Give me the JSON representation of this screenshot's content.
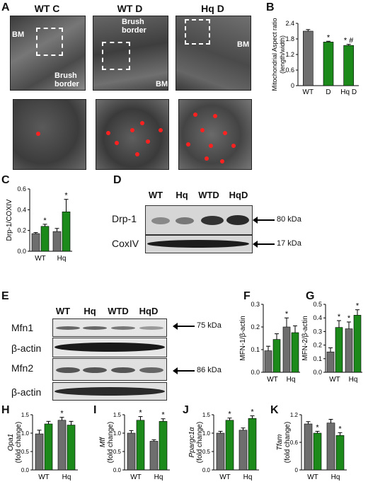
{
  "panels": {
    "A": "A",
    "B": "B",
    "C": "C",
    "D": "D",
    "E": "E",
    "F": "F",
    "G": "G",
    "H": "H",
    "I": "I",
    "J": "J",
    "K": "K"
  },
  "em": {
    "titles": [
      "WT C",
      "WT D",
      "Hq D"
    ],
    "labels": {
      "bm": "BM",
      "brush_border": "Brush border"
    }
  },
  "blot_d": {
    "lanes": [
      "WT",
      "Hq",
      "WTD",
      "HqD"
    ],
    "rows": [
      "Drp-1",
      "CoxIV"
    ],
    "kda": [
      "80 kDa",
      "17 kDa"
    ]
  },
  "blot_e": {
    "lanes": [
      "WT",
      "Hq",
      "WTD",
      "HqD"
    ],
    "rows": [
      "Mfn1",
      "β-actin",
      "Mfn2",
      "β-actin"
    ],
    "kda": [
      "75 kDa",
      "86 kDa"
    ]
  },
  "colors": {
    "control": "#6e6e6e",
    "treated": "#1b8a1b",
    "error": "#000000"
  },
  "chart_data": [
    {
      "id": "B",
      "type": "bar",
      "categories": [
        "WT",
        "D",
        "Hq D"
      ],
      "values": [
        2.1,
        1.68,
        1.55
      ],
      "errors": [
        0.06,
        0.03,
        0.04
      ],
      "colors": [
        "#6e6e6e",
        "#1b8a1b",
        "#1b8a1b"
      ],
      "ylabel": "Mitochondrial Aspect ratio (length/width)",
      "ylim": [
        0,
        2.4
      ],
      "yticks": [
        0,
        0.6,
        1.2,
        1.8,
        2.4
      ],
      "sig": [
        "",
        "*",
        "* #"
      ]
    },
    {
      "id": "C",
      "type": "bar",
      "categories": [
        "WT",
        "Hq"
      ],
      "series": [
        {
          "values": [
            0.17,
            0.19
          ],
          "errors": [
            0.01,
            0.03
          ]
        },
        {
          "values": [
            0.24,
            0.38
          ],
          "errors": [
            0.02,
            0.12
          ]
        }
      ],
      "ylabel": "Drp-1/COXIV",
      "ylim": [
        0,
        0.6
      ],
      "yticks": [
        0,
        0.2,
        0.4,
        0.6
      ],
      "tick_labels": [
        "0.0",
        "0.2",
        "0.4",
        "0.6"
      ],
      "sig": [
        [
          "",
          ""
        ],
        [
          "*",
          "*"
        ]
      ]
    },
    {
      "id": "F",
      "type": "bar",
      "categories": [
        "WT",
        "Hq"
      ],
      "series": [
        {
          "values": [
            0.095,
            0.2
          ],
          "errors": [
            0.02,
            0.04
          ]
        },
        {
          "values": [
            0.145,
            0.175
          ],
          "errors": [
            0.025,
            0.03
          ]
        }
      ],
      "ylabel": "MFN-1/β-actin",
      "ylim": [
        0,
        0.3
      ],
      "yticks": [
        0,
        0.1,
        0.2,
        0.3
      ],
      "tick_labels": [
        "0.0",
        "0.1",
        "0.2",
        "0.3"
      ],
      "sig": [
        [
          "",
          "*"
        ],
        [
          "",
          ""
        ]
      ]
    },
    {
      "id": "G",
      "type": "bar",
      "categories": [
        "WT",
        "Hq"
      ],
      "series": [
        {
          "values": [
            0.15,
            0.32
          ],
          "errors": [
            0.03,
            0.05
          ]
        },
        {
          "values": [
            0.33,
            0.42
          ],
          "errors": [
            0.05,
            0.04
          ]
        }
      ],
      "ylabel": "MFN-2/β-actin",
      "ylim": [
        0,
        0.5
      ],
      "yticks": [
        0,
        0.1,
        0.2,
        0.3,
        0.4,
        0.5
      ],
      "tick_labels": [
        "0.0",
        "0.1",
        "0.2",
        "0.3",
        "0.4",
        "0.5"
      ],
      "sig": [
        [
          "",
          "*"
        ],
        [
          "*",
          "*"
        ]
      ]
    },
    {
      "id": "H",
      "type": "bar",
      "categories": [
        "WT",
        "Hq"
      ],
      "series": [
        {
          "values": [
            0.98,
            1.35
          ],
          "errors": [
            0.1,
            0.08
          ]
        },
        {
          "values": [
            1.25,
            1.22
          ],
          "errors": [
            0.07,
            0.1
          ]
        }
      ],
      "ylabel": "Opa1 (fold change)",
      "ylim": [
        0,
        1.5
      ],
      "yticks": [
        0,
        0.5,
        1,
        1.5
      ],
      "tick_labels": [
        "0.0",
        "0.5",
        "1.0",
        "1.5"
      ],
      "sig": [
        [
          "",
          "*"
        ],
        [
          "",
          ""
        ]
      ]
    },
    {
      "id": "I",
      "type": "bar",
      "categories": [
        "WT",
        "Hq"
      ],
      "series": [
        {
          "values": [
            1.0,
            0.78
          ],
          "errors": [
            0.07,
            0.04
          ]
        },
        {
          "values": [
            1.35,
            1.32
          ],
          "errors": [
            0.1,
            0.07
          ]
        }
      ],
      "ylabel": "Mff (fold change)",
      "ylim": [
        0,
        1.5
      ],
      "yticks": [
        0,
        0.5,
        1,
        1.5
      ],
      "tick_labels": [
        "0.0",
        "0.5",
        "1.0",
        "1.5"
      ],
      "sig": [
        [
          "",
          ""
        ],
        [
          "*",
          "*"
        ]
      ]
    },
    {
      "id": "J",
      "type": "bar",
      "categories": [
        "WT",
        "Hq"
      ],
      "series": [
        {
          "values": [
            1.0,
            1.08
          ],
          "errors": [
            0.05,
            0.06
          ]
        },
        {
          "values": [
            1.35,
            1.4
          ],
          "errors": [
            0.06,
            0.07
          ]
        }
      ],
      "ylabel": "Ppargc1α (fold change)",
      "ylim": [
        0,
        1.5
      ],
      "yticks": [
        0,
        0.5,
        1,
        1.5
      ],
      "tick_labels": [
        "0.0",
        "0.5",
        "1.0",
        "1.5"
      ],
      "sig": [
        [
          "",
          ""
        ],
        [
          "*",
          "*"
        ]
      ]
    },
    {
      "id": "K",
      "type": "bar",
      "categories": [
        "WT",
        "Hq"
      ],
      "series": [
        {
          "values": [
            1.0,
            1.02
          ],
          "errors": [
            0.05,
            0.08
          ]
        },
        {
          "values": [
            0.8,
            0.75
          ],
          "errors": [
            0.04,
            0.06
          ]
        }
      ],
      "ylabel": "Tfam (fold change)",
      "ylim": [
        0,
        1.2
      ],
      "yticks": [
        0,
        0.6,
        1.2
      ],
      "tick_labels": [
        "0",
        "0.6",
        "1.2"
      ],
      "sig": [
        [
          "",
          ""
        ],
        [
          "*",
          "*"
        ]
      ]
    }
  ]
}
